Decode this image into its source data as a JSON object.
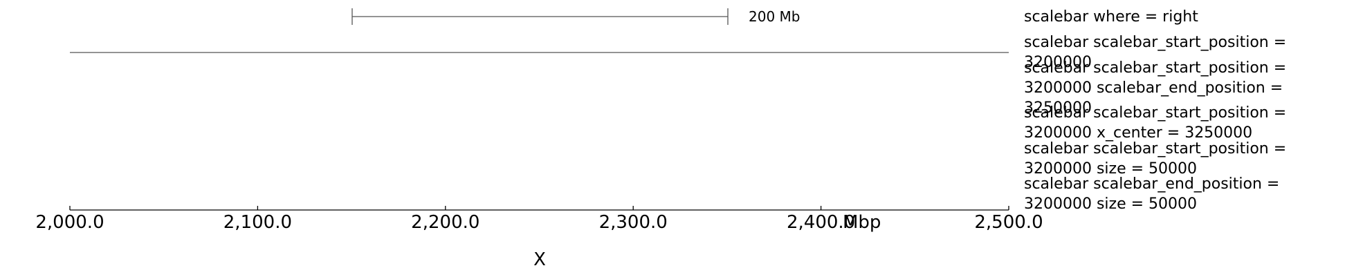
{
  "scalebar": {
    "label": "200 Mb"
  },
  "track_labels": [
    "scalebar where = right",
    "scalebar scalebar_start_position = 3200000",
    "scalebar scalebar_start_position = 3200000 scalebar_end_position = 3250000",
    "scalebar scalebar_start_position = 3200000 x_center = 3250000",
    "scalebar scalebar_start_position = 3200000 size = 50000",
    "scalebar scalebar_end_position = 3200000 size = 50000"
  ],
  "axis": {
    "range": [
      2000,
      2500
    ],
    "ticks": [
      {
        "value": 2000,
        "label": "2,000.0"
      },
      {
        "value": 2100,
        "label": "2,100.0"
      },
      {
        "value": 2200,
        "label": "2,200.0"
      },
      {
        "value": 2300,
        "label": "2,300.0"
      },
      {
        "value": 2400,
        "label": "2,400.0"
      },
      {
        "value": 2500,
        "label": "2,500.0"
      }
    ],
    "unit": "Mbp",
    "chromosome": "X"
  },
  "colors": {
    "line": "#000000",
    "track": "#555555"
  }
}
